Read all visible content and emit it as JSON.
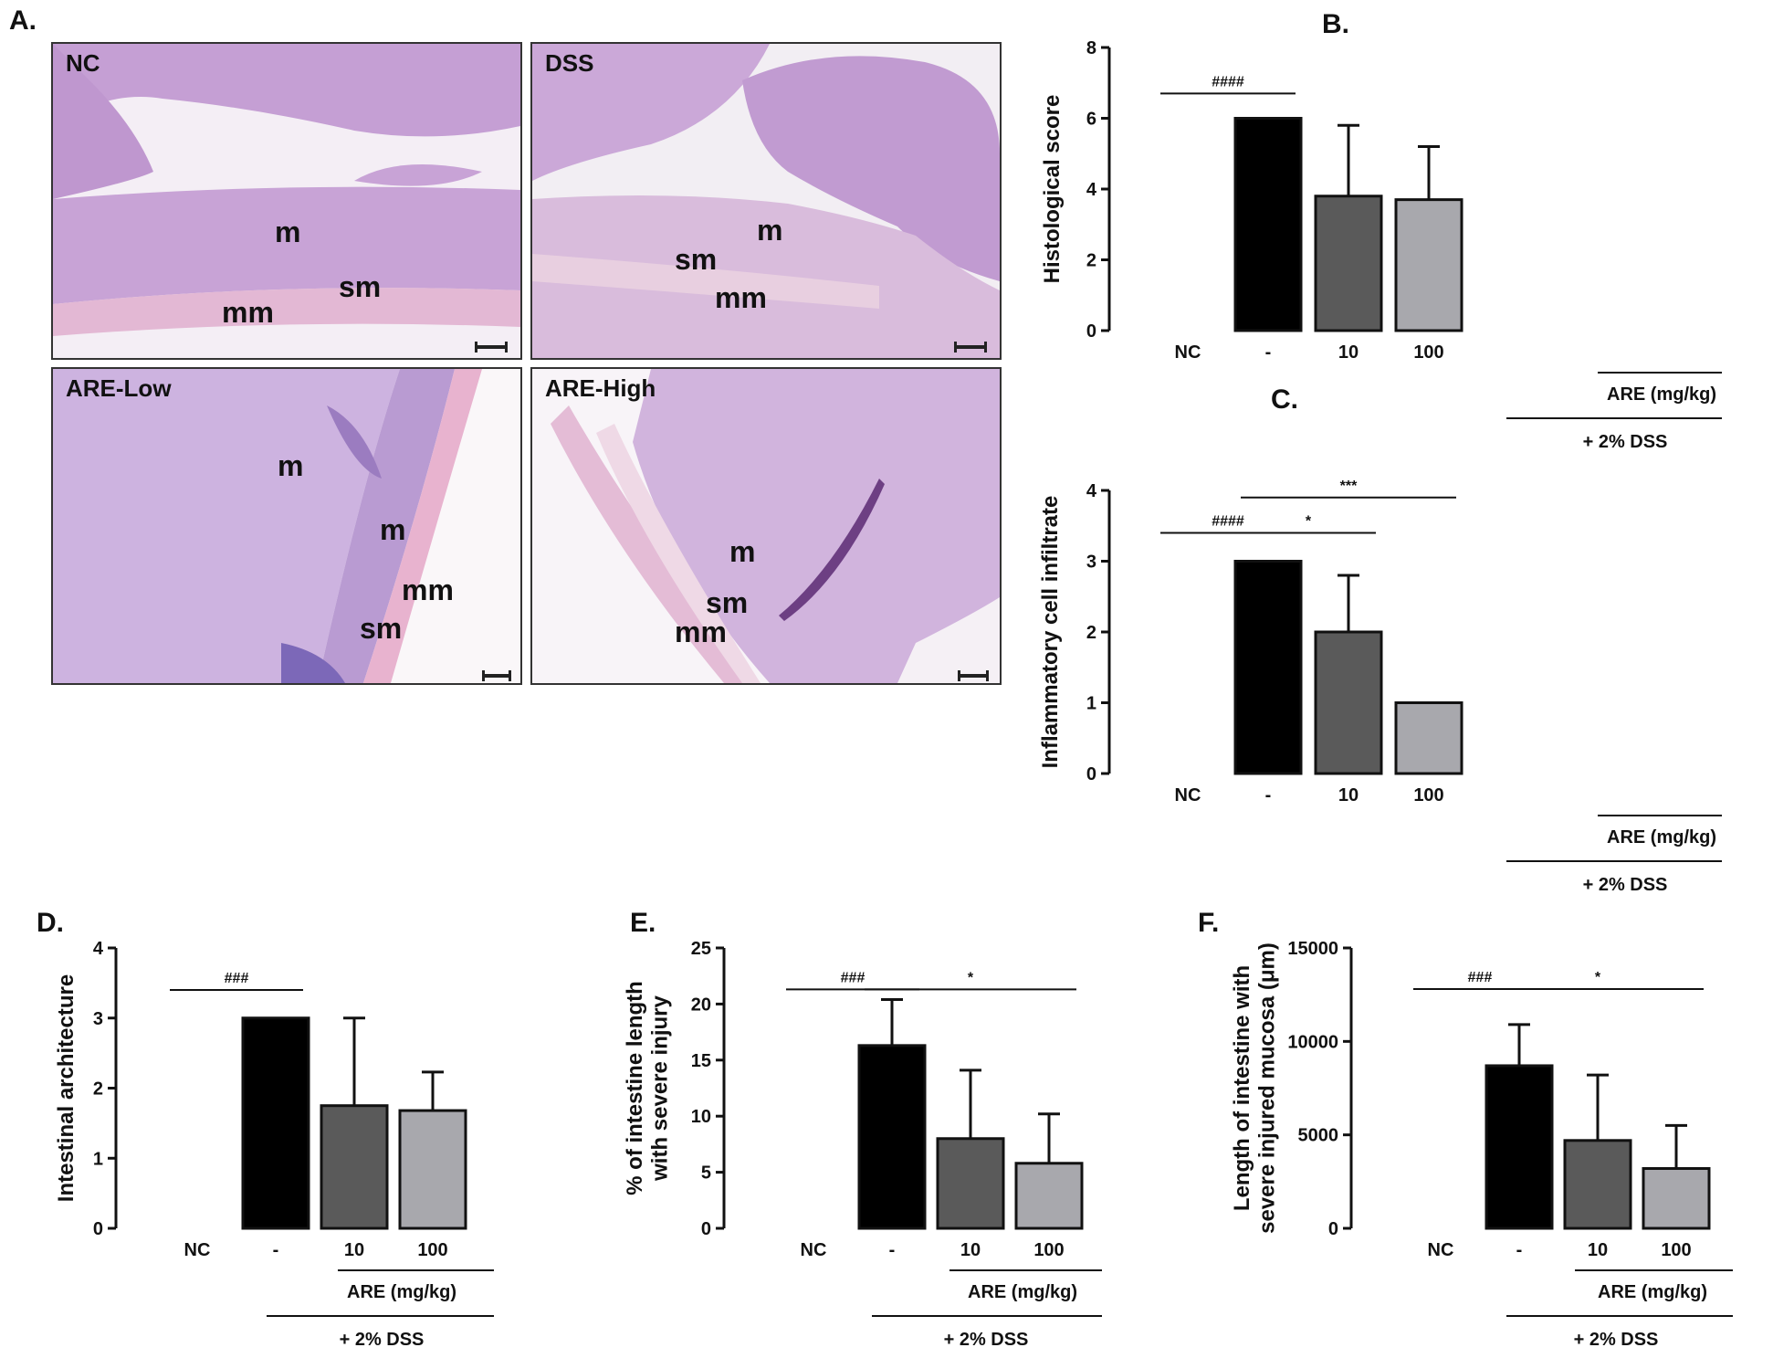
{
  "panel_letters": {
    "a": "A.",
    "b": "B.",
    "c": "C.",
    "d": "D.",
    "e": "E.",
    "f": "F."
  },
  "micrographs": [
    {
      "title": "NC",
      "layers": [
        "m",
        "sm",
        "mm"
      ],
      "stain_color": "#c9a6d6"
    },
    {
      "title": "DSS",
      "layers": [
        "m",
        "sm",
        "mm"
      ],
      "stain_color": "#cfb0d8"
    },
    {
      "title": "ARE-Low",
      "layers": [
        "m",
        "m",
        "mm",
        "sm"
      ],
      "stain_color": "#cdb3e0"
    },
    {
      "title": "ARE-High",
      "layers": [
        "m",
        "sm",
        "mm"
      ],
      "stain_color": "#d1b4dd"
    }
  ],
  "colors": {
    "nc": "#ffffff",
    "dss": "#000000",
    "are10": "#5a5a5a",
    "are100": "#a8a8ad"
  },
  "chart_data": [
    {
      "panel": "B.",
      "type": "bar",
      "ylabel": "Histological score",
      "ylim": [
        0,
        8
      ],
      "yticks": [
        "0",
        "2",
        "4",
        "6",
        "8"
      ],
      "categories": [
        "NC",
        "-",
        "10",
        "100"
      ],
      "values": [
        0,
        6,
        3.8,
        3.7
      ],
      "errors": [
        0,
        0,
        2.0,
        1.5
      ],
      "group_label": "ARE (mg/kg)",
      "treatment_label": "+ 2% DSS",
      "significance": [
        {
          "from": 0,
          "to": 1,
          "label": "####",
          "y": 6.7
        }
      ]
    },
    {
      "panel": "C.",
      "type": "bar",
      "ylabel": "Inflammatory cell infiltrate",
      "ylim": [
        0,
        4
      ],
      "yticks": [
        "0",
        "1",
        "2",
        "3",
        "4"
      ],
      "categories": [
        "NC",
        "-",
        "10",
        "100"
      ],
      "values": [
        0,
        3,
        2,
        1
      ],
      "errors": [
        0,
        0,
        0.8,
        0
      ],
      "group_label": "ARE (mg/kg)",
      "treatment_label": "+ 2% DSS",
      "significance": [
        {
          "from": 0,
          "to": 1,
          "label": "####",
          "y": 3.4
        },
        {
          "from": 1,
          "to": 2,
          "label": "*",
          "y": 3.4
        },
        {
          "from": 1,
          "to": 3,
          "label": "***",
          "y": 3.9
        }
      ]
    },
    {
      "panel": "D.",
      "type": "bar",
      "ylabel": "Intestinal architecture",
      "ylim": [
        0,
        4
      ],
      "yticks": [
        "0",
        "1",
        "2",
        "3",
        "4"
      ],
      "categories": [
        "NC",
        "-",
        "10",
        "100"
      ],
      "values": [
        0,
        3,
        1.75,
        1.68
      ],
      "errors": [
        0,
        0,
        1.25,
        0.55
      ],
      "group_label": "ARE (mg/kg)",
      "treatment_label": "+ 2% DSS",
      "significance": [
        {
          "from": 0,
          "to": 1,
          "label": "###",
          "y": 3.4
        }
      ]
    },
    {
      "panel": "E.",
      "type": "bar",
      "ylabel": "% of intestine length with severe injury",
      "ylim": [
        0,
        25
      ],
      "yticks": [
        "0",
        "5",
        "10",
        "15",
        "20",
        "25"
      ],
      "categories": [
        "NC",
        "-",
        "10",
        "100"
      ],
      "values": [
        0,
        16.3,
        8,
        5.8
      ],
      "errors": [
        0,
        4.1,
        6.1,
        4.4
      ],
      "group_label": "ARE (mg/kg)",
      "treatment_label": "+ 2% DSS",
      "significance": [
        {
          "from": 0,
          "to": 1,
          "label": "###",
          "y": 21.3
        },
        {
          "from": 1,
          "to": 3,
          "label": "*",
          "y": 21.3
        }
      ]
    },
    {
      "panel": "F.",
      "type": "bar",
      "ylabel": "Length of intestine with severe injured mucosa (μm)",
      "ylim": [
        0,
        15000
      ],
      "yticks": [
        "0",
        "5000",
        "10000",
        "15000"
      ],
      "categories": [
        "NC",
        "-",
        "10",
        "100"
      ],
      "values": [
        0,
        8700,
        4700,
        3200
      ],
      "errors": [
        0,
        2200,
        3500,
        2300
      ],
      "group_label": "ARE (mg/kg)",
      "treatment_label": "+ 2% DSS",
      "significance": [
        {
          "from": 0,
          "to": 1,
          "label": "###",
          "y": 12800
        },
        {
          "from": 1,
          "to": 3,
          "label": "*",
          "y": 12800
        }
      ]
    }
  ]
}
